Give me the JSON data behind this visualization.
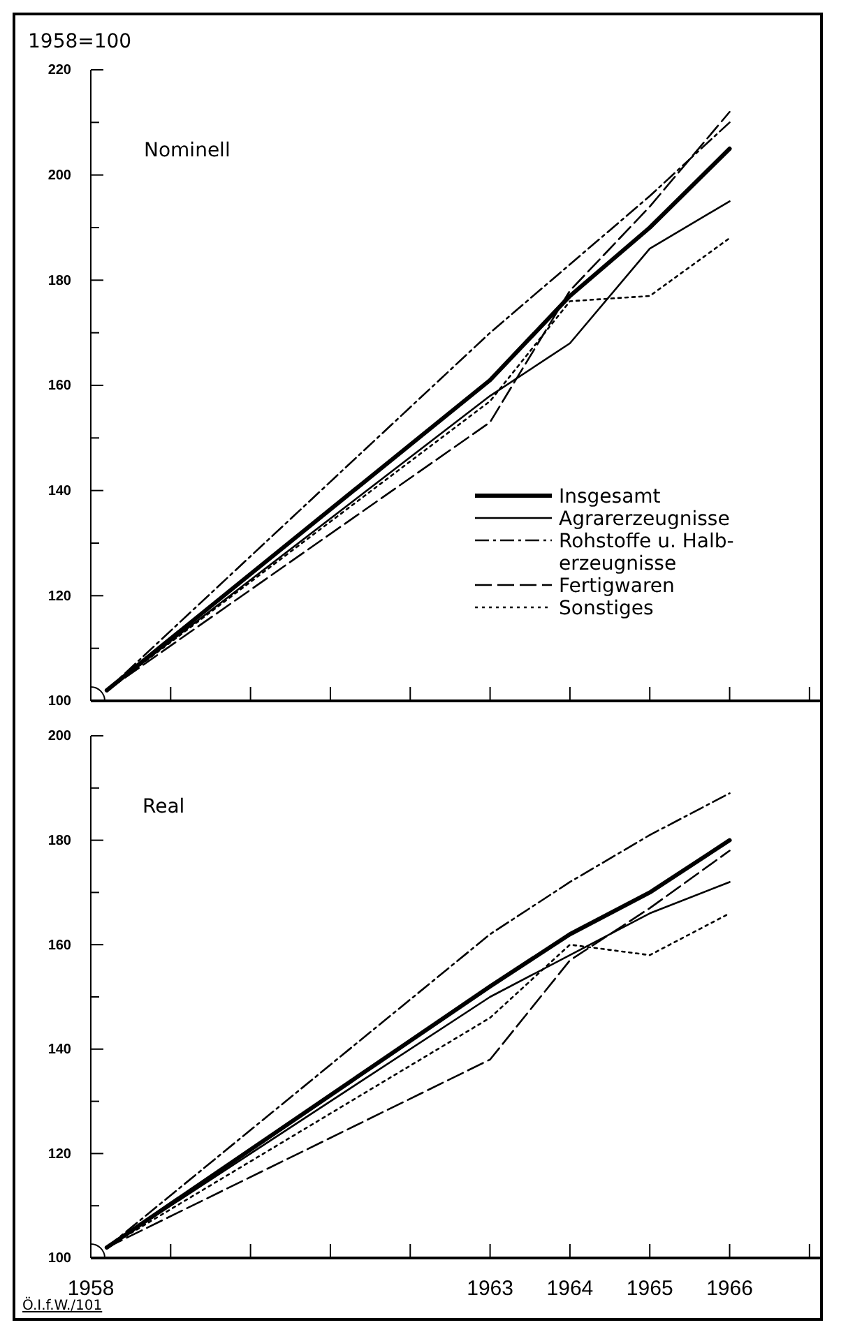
{
  "chart_data": [
    {
      "type": "line",
      "title": "Nominell",
      "ylabel": "1958=100",
      "xlim": [
        1958,
        1967.15
      ],
      "xticks": [
        {
          "value": 1958,
          "label": null
        },
        {
          "value": 1959,
          "label": null
        },
        {
          "value": 1960,
          "label": null
        },
        {
          "value": 1961,
          "label": null
        },
        {
          "value": 1962,
          "label": null
        },
        {
          "value": 1963,
          "label": null
        },
        {
          "value": 1964,
          "label": null
        },
        {
          "value": 1965,
          "label": null
        },
        {
          "value": 1966,
          "label": null
        },
        {
          "value": 1967,
          "label": null
        }
      ],
      "ylim": [
        100,
        220
      ],
      "yticks": [
        100,
        {
          "value": 110,
          "label": null
        },
        120,
        {
          "value": 130,
          "label": null
        },
        140,
        {
          "value": 150,
          "label": null
        },
        160,
        {
          "value": 170,
          "label": null
        },
        180,
        {
          "value": 190,
          "label": null
        },
        200,
        {
          "value": 210,
          "label": null
        },
        220
      ],
      "tick_labels": "y",
      "grid": false,
      "legend": "bottom right",
      "x": [
        1958.2,
        1963,
        1964,
        1965,
        1966
      ],
      "series": [
        {
          "name": "Insgesamt",
          "color": "#000000",
          "line_style": "solid",
          "values": [
            102,
            161,
            177,
            190,
            205
          ]
        },
        {
          "name": "Agrarerzeugnisse",
          "color": "#000000",
          "line_style": "solid",
          "values": [
            102,
            158,
            168,
            186,
            195
          ]
        },
        {
          "name": "Rohstoffe u. Halb-\nerzeugnisse",
          "color": "#000000",
          "line_style": "dashdot",
          "values": [
            102,
            170,
            183,
            196,
            210
          ]
        },
        {
          "name": "Fertigwaren",
          "color": "#000000",
          "line_style": "dashed",
          "values": [
            102,
            153,
            178,
            194,
            212
          ]
        },
        {
          "name": "Sonstiges",
          "color": "#000000",
          "line_style": "dotted",
          "values": [
            102,
            157,
            176,
            177,
            188
          ]
        }
      ]
    },
    {
      "type": "line",
      "title": "Real",
      "annotations": [
        "Ö.I.f.W./101"
      ],
      "xlim": [
        1958,
        1967.15
      ],
      "xticks": [
        1958,
        {
          "value": 1959,
          "label": null
        },
        {
          "value": 1960,
          "label": null
        },
        {
          "value": 1961,
          "label": null
        },
        {
          "value": 1962,
          "label": null
        },
        1963,
        1964,
        1965,
        1966,
        {
          "value": 1967,
          "label": null
        }
      ],
      "ylim": [
        100,
        200
      ],
      "yticks": [
        100,
        {
          "value": 110,
          "label": null
        },
        120,
        {
          "value": 130,
          "label": null
        },
        140,
        {
          "value": 150,
          "label": null
        },
        160,
        {
          "value": 170,
          "label": null
        },
        180,
        {
          "value": 190,
          "label": null
        },
        200
      ],
      "grid": false,
      "x": [
        1958.2,
        1963,
        1964,
        1965,
        1966
      ],
      "series": [
        {
          "color": "#000000",
          "line_style": "solid",
          "values": [
            102,
            152,
            162,
            170,
            180
          ]
        },
        {
          "color": "#000000",
          "line_style": "solid",
          "values": [
            102,
            150,
            158,
            166,
            172
          ]
        },
        {
          "color": "#000000",
          "line_style": "dashdot",
          "values": [
            102,
            162,
            172,
            181,
            189
          ]
        },
        {
          "color": "#000000",
          "line_style": "dashed",
          "values": [
            102,
            138,
            157,
            167,
            178
          ]
        },
        {
          "color": "#000000",
          "line_style": "dotted",
          "values": [
            102,
            146,
            160,
            158,
            166
          ]
        }
      ]
    }
  ]
}
